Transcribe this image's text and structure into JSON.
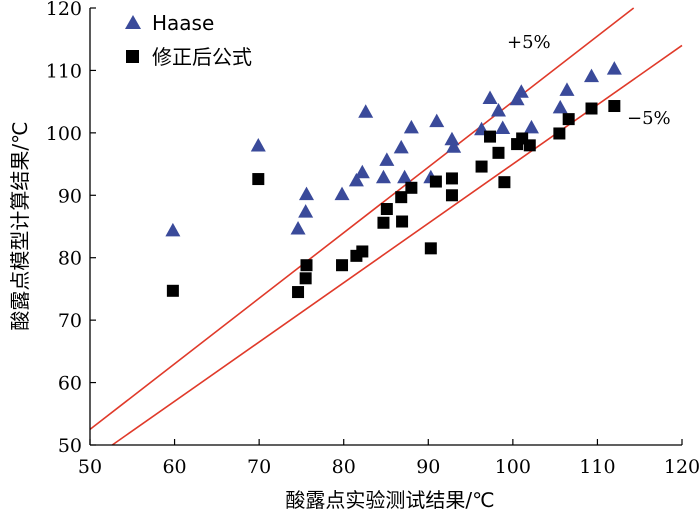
{
  "chart_data": {
    "type": "scatter",
    "xlabel": "酸露点实验测试结果/℃",
    "ylabel": "酸露点模型计算结果/℃",
    "xlim": [
      50,
      120
    ],
    "ylim": [
      50,
      120
    ],
    "xticks": [
      "50",
      "60",
      "70",
      "80",
      "90",
      "100",
      "110",
      "120"
    ],
    "yticks": [
      "50",
      "60",
      "70",
      "80",
      "90",
      "100",
      "110",
      "120"
    ],
    "grid": false,
    "legend_position": "top-left",
    "series": [
      {
        "name": "Haase",
        "marker": "triangle",
        "color": "#3a4a9a",
        "points": [
          [
            59.8,
            84.3
          ],
          [
            69.9,
            97.9
          ],
          [
            74.6,
            84.6
          ],
          [
            75.5,
            87.3
          ],
          [
            75.6,
            90.1
          ],
          [
            79.8,
            90.1
          ],
          [
            81.5,
            92.3
          ],
          [
            82.2,
            93.6
          ],
          [
            82.6,
            103.3
          ],
          [
            84.7,
            92.8
          ],
          [
            85.1,
            95.6
          ],
          [
            86.8,
            97.6
          ],
          [
            87.2,
            92.8
          ],
          [
            88.0,
            100.8
          ],
          [
            90.3,
            92.8
          ],
          [
            91.0,
            101.8
          ],
          [
            92.8,
            98.9
          ],
          [
            93.0,
            97.7
          ],
          [
            96.3,
            100.5
          ],
          [
            97.3,
            105.5
          ],
          [
            98.3,
            103.5
          ],
          [
            98.8,
            100.7
          ],
          [
            100.5,
            105.3
          ],
          [
            101.0,
            106.5
          ],
          [
            102.2,
            100.8
          ],
          [
            105.6,
            104.0
          ],
          [
            106.4,
            106.8
          ],
          [
            109.3,
            109.0
          ],
          [
            112.0,
            110.2
          ]
        ]
      },
      {
        "name": "修正后公式",
        "marker": "square",
        "color": "#000000",
        "points": [
          [
            59.8,
            74.7
          ],
          [
            69.9,
            92.6
          ],
          [
            74.6,
            74.5
          ],
          [
            75.5,
            76.7
          ],
          [
            75.6,
            78.8
          ],
          [
            79.8,
            78.8
          ],
          [
            81.5,
            80.3
          ],
          [
            82.2,
            81.0
          ],
          [
            84.7,
            85.6
          ],
          [
            85.1,
            87.8
          ],
          [
            86.8,
            89.7
          ],
          [
            86.9,
            85.8
          ],
          [
            88.0,
            91.2
          ],
          [
            90.3,
            81.5
          ],
          [
            90.9,
            92.2
          ],
          [
            92.8,
            90.0
          ],
          [
            92.8,
            92.7
          ],
          [
            96.3,
            94.6
          ],
          [
            97.3,
            99.4
          ],
          [
            98.3,
            96.8
          ],
          [
            99.0,
            92.1
          ],
          [
            100.5,
            98.2
          ],
          [
            101.1,
            99.1
          ],
          [
            102.0,
            98.0
          ],
          [
            105.5,
            99.9
          ],
          [
            106.6,
            102.2
          ],
          [
            109.3,
            103.9
          ],
          [
            112.0,
            104.3
          ]
        ]
      }
    ],
    "reference_lines": [
      {
        "label": "+5%",
        "slope": 1.05,
        "color": "#e03a2a"
      },
      {
        "label": "−5%",
        "slope": 0.95,
        "color": "#e03a2a"
      }
    ]
  }
}
